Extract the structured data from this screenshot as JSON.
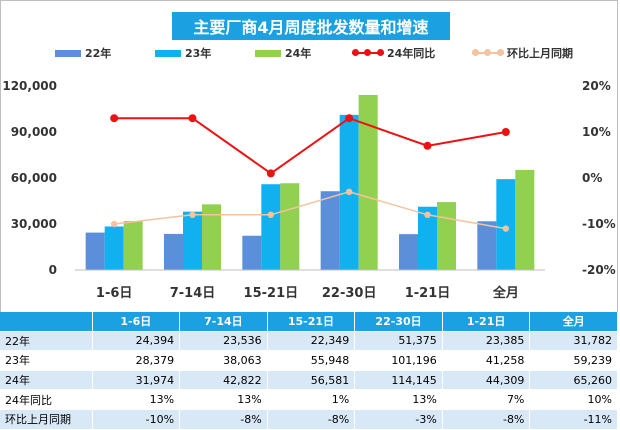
{
  "title": "主要厂商4月周度批发数量和增速",
  "colors": {
    "title_bg": "#1ba1e2",
    "y22": "#5b8fd9",
    "y23": "#11b0ef",
    "y24": "#92d050",
    "yoy": "#ee1111",
    "mom": "#f5c39d",
    "table_header": "#1ba1e2",
    "table_band": "#d9e8f7"
  },
  "legend": [
    "22年",
    "23年",
    "24年",
    "24年同比",
    "环比上月同期"
  ],
  "chart_data": {
    "type": "bar",
    "title": "主要厂商4月周度批发数量和增速",
    "categories": [
      "1-6日",
      "7-14日",
      "15-21日",
      "22-30日",
      "1-21日",
      "全月"
    ],
    "series": [
      {
        "name": "22年",
        "type": "bar",
        "axis": "left",
        "values": [
          24394,
          23536,
          22349,
          51375,
          23385,
          31782
        ]
      },
      {
        "name": "23年",
        "type": "bar",
        "axis": "left",
        "values": [
          28379,
          38063,
          55948,
          101196,
          41258,
          59239
        ]
      },
      {
        "name": "24年",
        "type": "bar",
        "axis": "left",
        "values": [
          31974,
          42822,
          56581,
          114145,
          44309,
          65260
        ]
      },
      {
        "name": "24年同比",
        "type": "line",
        "axis": "right",
        "values": [
          13,
          13,
          1,
          13,
          7,
          10
        ]
      },
      {
        "name": "环比上月同期",
        "type": "line",
        "axis": "right",
        "values": [
          -10,
          -8,
          -8,
          -3,
          -8,
          -11
        ]
      }
    ],
    "y_left": {
      "range": [
        0,
        120000
      ],
      "ticks": [
        "0",
        "30,000",
        "60,000",
        "90,000",
        "120,000"
      ]
    },
    "y_right": {
      "range": [
        -20,
        20
      ],
      "ticks": [
        "-20%",
        "-10%",
        "0%",
        "10%",
        "20%"
      ]
    },
    "grid": false,
    "legend_position": "top"
  },
  "table": {
    "header": [
      "",
      "1-6日",
      "7-14日",
      "15-21日",
      "22-30日",
      "1-21日",
      "全月"
    ],
    "rows": [
      {
        "label": "22年",
        "values": [
          "24,394",
          "23,536",
          "22,349",
          "51,375",
          "23,385",
          "31,782"
        ]
      },
      {
        "label": "23年",
        "values": [
          "28,379",
          "38,063",
          "55,948",
          "101,196",
          "41,258",
          "59,239"
        ]
      },
      {
        "label": "24年",
        "values": [
          "31,974",
          "42,822",
          "56,581",
          "114,145",
          "44,309",
          "65,260"
        ]
      },
      {
        "label": "24年同比",
        "values": [
          "13%",
          "13%",
          "1%",
          "13%",
          "7%",
          "10%"
        ]
      },
      {
        "label": "环比上月同期",
        "values": [
          "-10%",
          "-8%",
          "-8%",
          "-3%",
          "-8%",
          "-11%"
        ]
      }
    ]
  }
}
